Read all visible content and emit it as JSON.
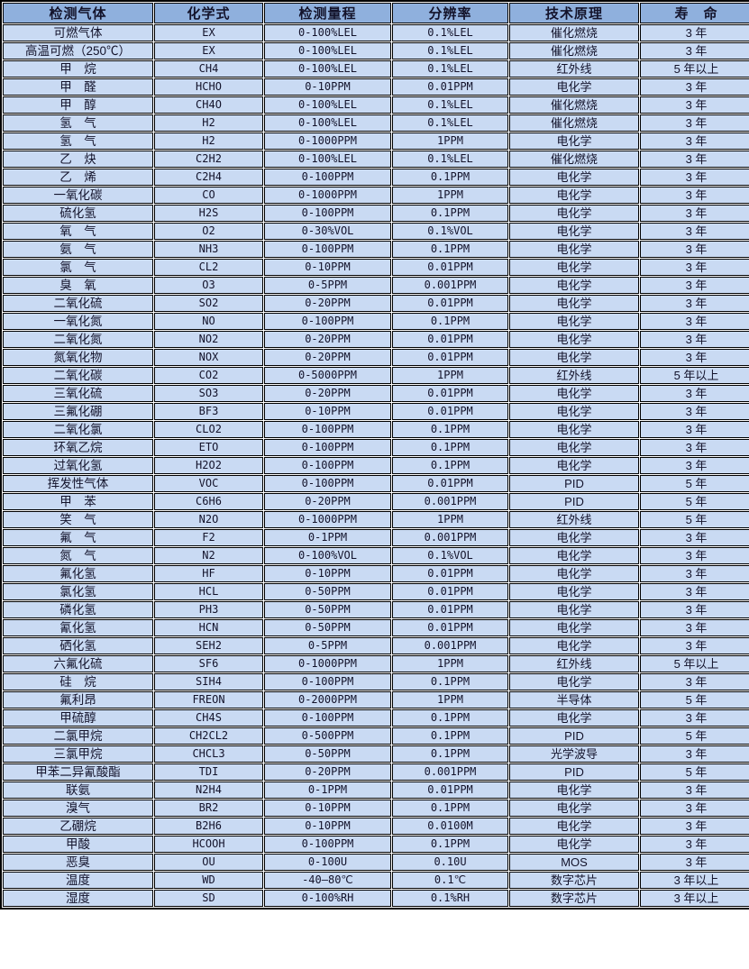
{
  "colors": {
    "header_bg": "#8fb0dd",
    "cell_bg": "#c9daf3",
    "grid_line": "#000000",
    "gap": "#ffffff",
    "text": "#13132b"
  },
  "table": {
    "headers": [
      "检测气体",
      "化学式",
      "检测量程",
      "分辨率",
      "技术原理",
      "寿　命"
    ],
    "cell_names": [
      "gas-name-cell",
      "chemical-formula-cell",
      "range-cell",
      "resolution-cell",
      "principle-cell",
      "lifespan-cell"
    ],
    "rows": [
      [
        "可燃气体",
        "EX",
        "0-100%LEL",
        "0.1%LEL",
        "催化燃烧",
        "3 年"
      ],
      [
        "高温可燃（250℃）",
        "EX",
        "0-100%LEL",
        "0.1%LEL",
        "催化燃烧",
        "3 年"
      ],
      [
        "甲　烷",
        "CH4",
        "0-100%LEL",
        "0.1%LEL",
        "红外线",
        "5 年以上"
      ],
      [
        "甲　醛",
        "HCHO",
        "0-10PPM",
        "0.01PPM",
        "电化学",
        "3 年"
      ],
      [
        "甲　醇",
        "CH4O",
        "0-100%LEL",
        "0.1%LEL",
        "催化燃烧",
        "3 年"
      ],
      [
        "氢　气",
        "H2",
        "0-100%LEL",
        "0.1%LEL",
        "催化燃烧",
        "3 年"
      ],
      [
        "氢　气",
        "H2",
        "0-1000PPM",
        "1PPM",
        "电化学",
        "3 年"
      ],
      [
        "乙　炔",
        "C2H2",
        "0-100%LEL",
        "0.1%LEL",
        "催化燃烧",
        "3 年"
      ],
      [
        "乙　烯",
        "C2H4",
        "0-100PPM",
        "0.1PPM",
        "电化学",
        "3 年"
      ],
      [
        "一氧化碳",
        "CO",
        "0-1000PPM",
        "1PPM",
        "电化学",
        "3 年"
      ],
      [
        "硫化氢",
        "H2S",
        "0-100PPM",
        "0.1PPM",
        "电化学",
        "3 年"
      ],
      [
        "氧　气",
        "O2",
        "0-30%VOL",
        "0.1%VOL",
        "电化学",
        "3 年"
      ],
      [
        "氨　气",
        "NH3",
        "0-100PPM",
        "0.1PPM",
        "电化学",
        "3 年"
      ],
      [
        "氯　气",
        "CL2",
        "0-10PPM",
        "0.01PPM",
        "电化学",
        "3 年"
      ],
      [
        "臭　氧",
        "O3",
        "0-5PPM",
        "0.001PPM",
        "电化学",
        "3 年"
      ],
      [
        "二氧化硫",
        "SO2",
        "0-20PPM",
        "0.01PPM",
        "电化学",
        "3 年"
      ],
      [
        "一氧化氮",
        "NO",
        "0-100PPM",
        "0.1PPM",
        "电化学",
        "3 年"
      ],
      [
        "二氧化氮",
        "NO2",
        "0-20PPM",
        "0.01PPM",
        "电化学",
        "3 年"
      ],
      [
        "氮氧化物",
        "NOX",
        "0-20PPM",
        "0.01PPM",
        "电化学",
        "3 年"
      ],
      [
        "二氧化碳",
        "CO2",
        "0-5000PPM",
        "1PPM",
        "红外线",
        "5 年以上"
      ],
      [
        "三氧化硫",
        "SO3",
        "0-20PPM",
        "0.01PPM",
        "电化学",
        "3 年"
      ],
      [
        "三氟化硼",
        "BF3",
        "0-10PPM",
        "0.01PPM",
        "电化学",
        "3 年"
      ],
      [
        "二氧化氯",
        "CLO2",
        "0-100PPM",
        "0.1PPM",
        "电化学",
        "3 年"
      ],
      [
        "环氧乙烷",
        "ETO",
        "0-100PPM",
        "0.1PPM",
        "电化学",
        "3 年"
      ],
      [
        "过氧化氢",
        "H2O2",
        "0-100PPM",
        "0.1PPM",
        "电化学",
        "3 年"
      ],
      [
        "挥发性气体",
        "VOC",
        "0-100PPM",
        "0.01PPM",
        "PID",
        "5 年"
      ],
      [
        "甲　苯",
        "C6H6",
        "0-20PPM",
        "0.001PPM",
        "PID",
        "5 年"
      ],
      [
        "笑　气",
        "N2O",
        "0-1000PPM",
        "1PPM",
        "红外线",
        "5 年"
      ],
      [
        "氟　气",
        "F2",
        "0-1PPM",
        "0.001PPM",
        "电化学",
        "3 年"
      ],
      [
        "氮　气",
        "N2",
        "0-100%VOL",
        "0.1%VOL",
        "电化学",
        "3 年"
      ],
      [
        "氟化氢",
        "HF",
        "0-10PPM",
        "0.01PPM",
        "电化学",
        "3 年"
      ],
      [
        "氯化氢",
        "HCL",
        "0-50PPM",
        "0.01PPM",
        "电化学",
        "3 年"
      ],
      [
        "磷化氢",
        "PH3",
        "0-50PPM",
        "0.01PPM",
        "电化学",
        "3 年"
      ],
      [
        "氰化氢",
        "HCN",
        "0-50PPM",
        "0.01PPM",
        "电化学",
        "3 年"
      ],
      [
        "硒化氢",
        "SEH2",
        "0-5PPM",
        "0.001PPM",
        "电化学",
        "3 年"
      ],
      [
        "六氟化硫",
        "SF6",
        "0-1000PPM",
        "1PPM",
        "红外线",
        "5 年以上"
      ],
      [
        "硅　烷",
        "SIH4",
        "0-100PPM",
        "0.1PPM",
        "电化学",
        "3 年"
      ],
      [
        "氟利昂",
        "FREON",
        "0-2000PPM",
        "1PPM",
        "半导体",
        "5 年"
      ],
      [
        "甲硫醇",
        "CH4S",
        "0-100PPM",
        "0.1PPM",
        "电化学",
        "3 年"
      ],
      [
        "二氯甲烷",
        "CH2CL2",
        "0-500PPM",
        "0.1PPM",
        "PID",
        "5 年"
      ],
      [
        "三氯甲烷",
        "CHCL3",
        "0-50PPM",
        "0.1PPM",
        "光学波导",
        "3 年"
      ],
      [
        "甲苯二异氰酸酯",
        "TDI",
        "0-20PPM",
        "0.001PPM",
        "PID",
        "5 年"
      ],
      [
        "联氨",
        "N2H4",
        "0-1PPM",
        "0.01PPM",
        "电化学",
        "3 年"
      ],
      [
        "溴气",
        "BR2",
        "0-10PPM",
        "0.1PPM",
        "电化学",
        "3 年"
      ],
      [
        "乙硼烷",
        "B2H6",
        "0-10PPM",
        "0.0100M",
        "电化学",
        "3 年"
      ],
      [
        "甲酸",
        "HCOOH",
        "0-100PPM",
        "0.1PPM",
        "电化学",
        "3 年"
      ],
      [
        "恶臭",
        "OU",
        "0-100U",
        "0.10U",
        "MOS",
        "3 年"
      ],
      [
        "温度",
        "WD",
        "-40—80℃",
        "0.1℃",
        "数字芯片",
        "3 年以上"
      ],
      [
        "湿度",
        "SD",
        "0-100%RH",
        "0.1%RH",
        "数字芯片",
        "3 年以上"
      ]
    ]
  }
}
